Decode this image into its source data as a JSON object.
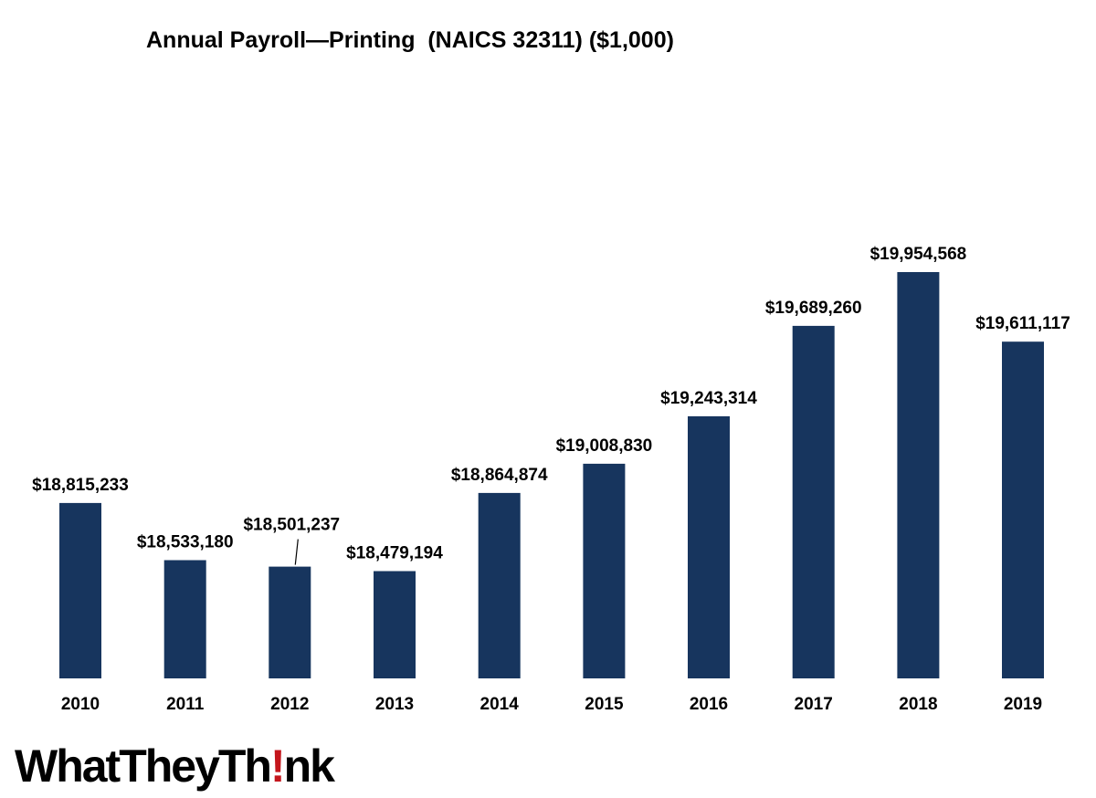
{
  "chart_data": {
    "type": "bar",
    "title": "Annual Payroll—Printing  (NAICS 32311) ($1,000)",
    "categories": [
      "2010",
      "2011",
      "2012",
      "2013",
      "2014",
      "2015",
      "2016",
      "2017",
      "2018",
      "2019"
    ],
    "values": [
      18815233,
      18533180,
      18501237,
      18479194,
      18864874,
      19008830,
      19243314,
      19689260,
      19954568,
      19611117
    ],
    "data_labels": [
      "$18,815,233",
      "$18,533,180",
      "$18,501,237",
      "$18,479,194",
      "$18,864,874",
      "$19,008,830",
      "$19,243,314",
      "$19,689,260",
      "$19,954,568",
      "$19,611,117"
    ],
    "xlabel": "",
    "ylabel": "",
    "ylim": [
      17950000,
      20200000
    ],
    "grid": false,
    "legend": "none",
    "bar_color": "#17355e"
  },
  "logo": {
    "text_before": "WhatTheyTh",
    "text_mark": "!",
    "text_after": "nk",
    "mark_color": "#c4161c"
  }
}
